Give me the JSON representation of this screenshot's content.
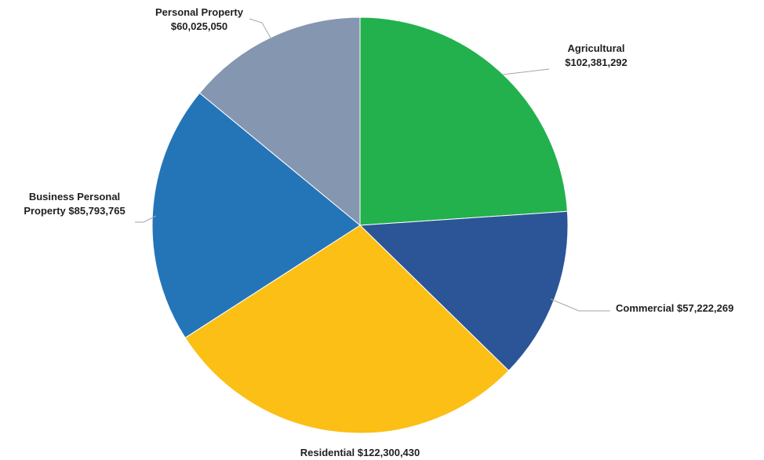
{
  "chart_data": {
    "type": "pie",
    "title": "",
    "start_angle_deg": 0,
    "direction": "clockwise",
    "slices": [
      {
        "label_line1": "Agricultural",
        "label_line2": "$102,381,292",
        "value": 102381292,
        "color": "#22b14c"
      },
      {
        "label_line1": "Commercial  $57,222,269",
        "label_line2": "",
        "value": 57222269,
        "color": "#2b5597"
      },
      {
        "label_line1": "Residential  $122,300,430",
        "label_line2": "",
        "value": 122300430,
        "color": "#fbbf15"
      },
      {
        "label_line1": "Business Personal",
        "label_line2": "Property  $85,793,765",
        "value": 85793765,
        "color": "#2475b8"
      },
      {
        "label_line1": "Personal Property",
        "label_line2": "$60,025,050",
        "value": 60025050,
        "color": "#8597b0"
      }
    ]
  }
}
